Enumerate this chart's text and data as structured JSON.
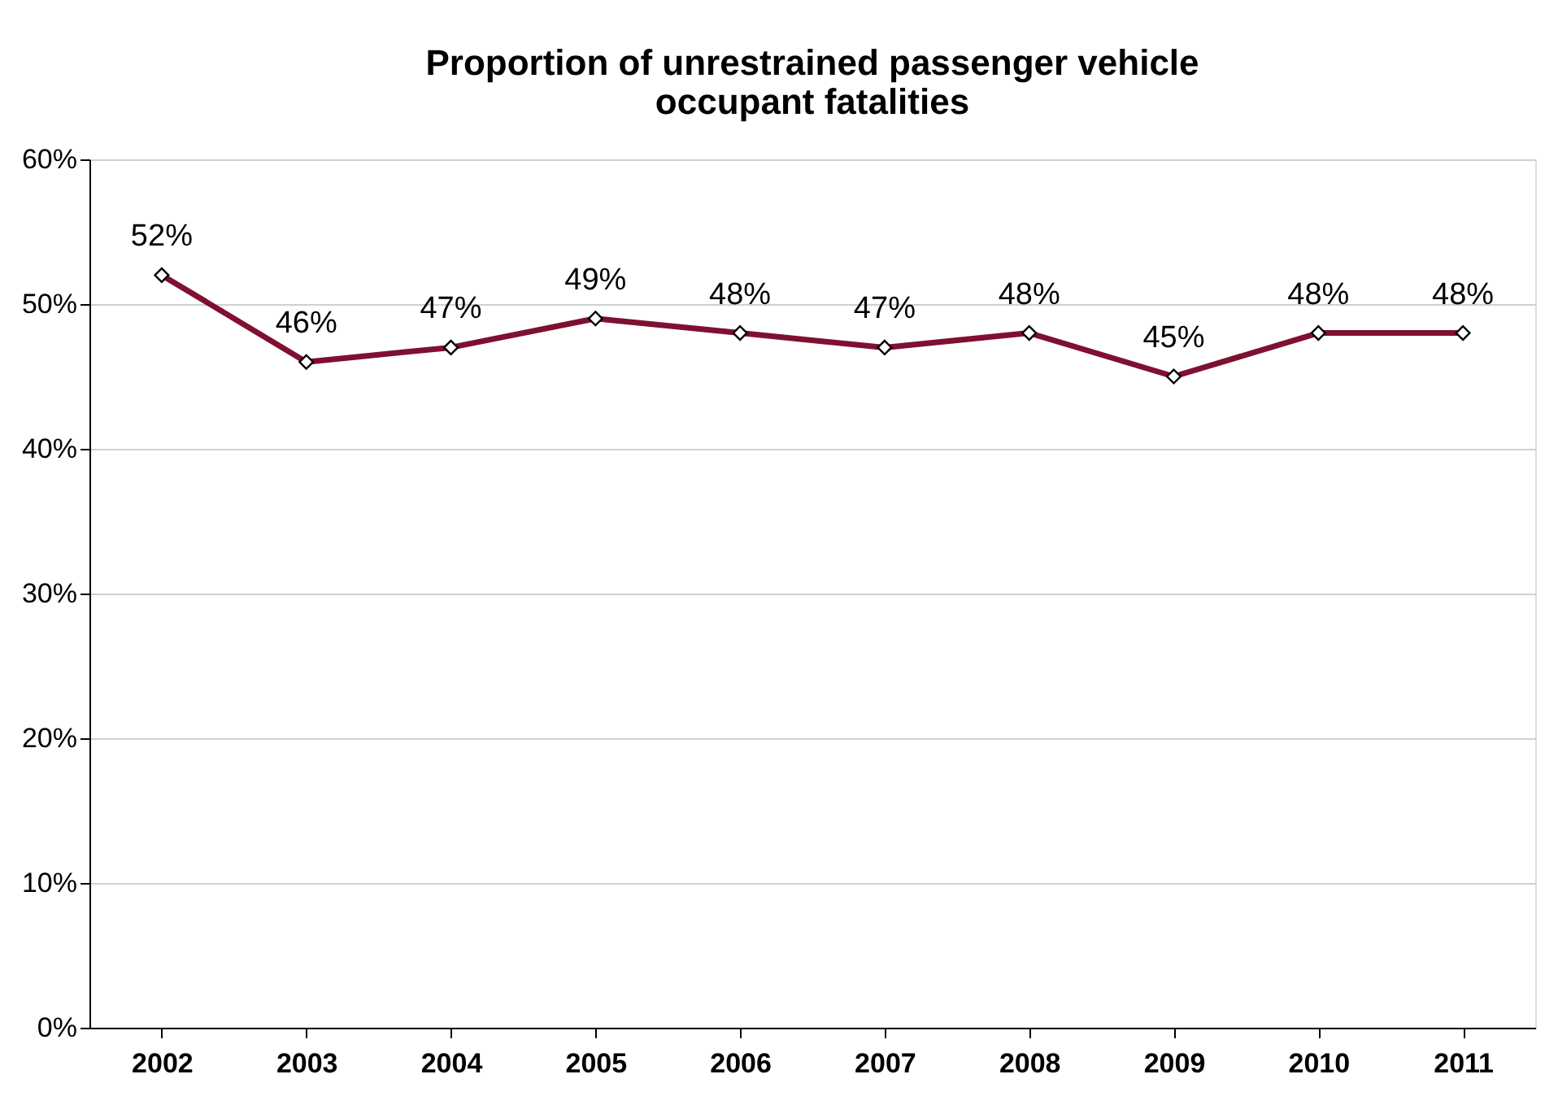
{
  "chart_data": {
    "type": "line",
    "title": "Proportion of unrestrained passenger vehicle occupant fatalities",
    "categories": [
      "2002",
      "2003",
      "2004",
      "2005",
      "2006",
      "2007",
      "2008",
      "2009",
      "2010",
      "2011"
    ],
    "series": [
      {
        "color": "#7f1030",
        "values": [
          52,
          46,
          47,
          49,
          48,
          47,
          48,
          45,
          48,
          48
        ],
        "value_labels": [
          "52%",
          "46%",
          "47%",
          "49%",
          "48%",
          "47%",
          "48%",
          "45%",
          "48%",
          "48%"
        ]
      }
    ],
    "ylim": [
      0,
      60
    ],
    "yticks": [
      {
        "value": 0,
        "label": "0%"
      },
      {
        "value": 10,
        "label": "10%"
      },
      {
        "value": 20,
        "label": "20%"
      },
      {
        "value": 30,
        "label": "30%"
      },
      {
        "value": 40,
        "label": "40%"
      },
      {
        "value": 50,
        "label": "50%"
      },
      {
        "value": 60,
        "label": "60%"
      }
    ],
    "grid": "y",
    "marker": "diamond",
    "line_style": "solid"
  }
}
